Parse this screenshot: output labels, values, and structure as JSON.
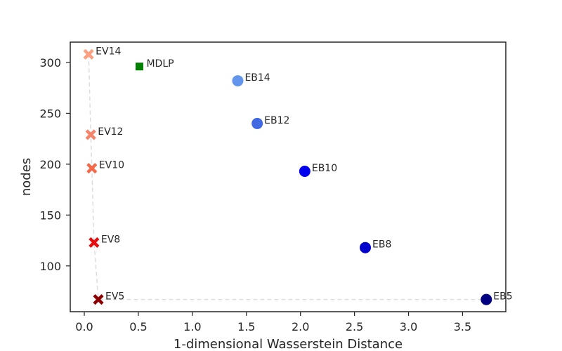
{
  "chart_data": {
    "type": "scatter",
    "xlabel": "1-dimensional Wasserstein Distance",
    "ylabel": "nodes",
    "xlim": [
      -0.13,
      3.9
    ],
    "ylim": [
      55,
      320
    ],
    "xticks": [
      0.0,
      0.5,
      1.0,
      1.5,
      2.0,
      2.5,
      3.0,
      3.5
    ],
    "xtick_labels": [
      "0.0",
      "0.5",
      "1.0",
      "1.5",
      "2.0",
      "2.5",
      "3.0",
      "3.5"
    ],
    "yticks": [
      100,
      150,
      200,
      250,
      300
    ],
    "ytick_labels": [
      "100",
      "150",
      "200",
      "250",
      "300"
    ],
    "grid": false,
    "legend": "none",
    "points": [
      {
        "label": "EV14",
        "x": 0.04,
        "y": 308,
        "marker": "x",
        "color": "#fca082"
      },
      {
        "label": "EV12",
        "x": 0.06,
        "y": 229,
        "marker": "x",
        "color": "#f4846a"
      },
      {
        "label": "EV10",
        "x": 0.07,
        "y": 196,
        "marker": "x",
        "color": "#f5694b"
      },
      {
        "label": "EV8",
        "x": 0.09,
        "y": 123,
        "marker": "x",
        "color": "#e60e0e"
      },
      {
        "label": "EV5",
        "x": 0.13,
        "y": 67,
        "marker": "x",
        "color": "#8b0000"
      },
      {
        "label": "MDLP",
        "x": 0.51,
        "y": 296,
        "marker": "square",
        "color": "#008000"
      },
      {
        "label": "EB14",
        "x": 1.42,
        "y": 282,
        "marker": "circle",
        "color": "#6495ed"
      },
      {
        "label": "EB12",
        "x": 1.6,
        "y": 240,
        "marker": "circle",
        "color": "#4169e1"
      },
      {
        "label": "EB10",
        "x": 2.04,
        "y": 193,
        "marker": "circle",
        "color": "#0000ee"
      },
      {
        "label": "EB8",
        "x": 2.6,
        "y": 118,
        "marker": "circle",
        "color": "#0000cd"
      },
      {
        "label": "EB5",
        "x": 3.72,
        "y": 67,
        "marker": "circle",
        "color": "#000080"
      }
    ],
    "frontier": {
      "style": "dashed",
      "color": "#dddddd",
      "x": [
        0.04,
        0.06,
        0.07,
        0.09,
        0.13,
        3.72
      ],
      "y": [
        308,
        229,
        196,
        123,
        67,
        67
      ]
    }
  }
}
